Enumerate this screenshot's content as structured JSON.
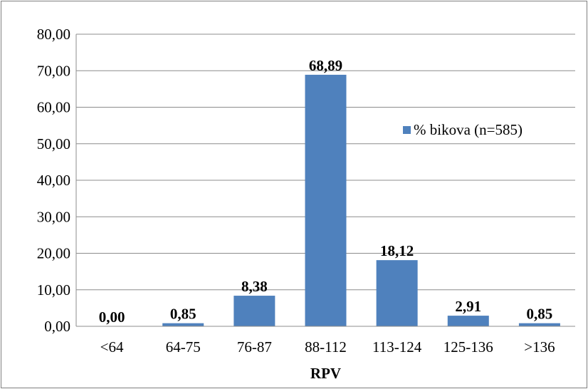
{
  "chart_data": {
    "type": "bar",
    "title": "",
    "xlabel": "RPV",
    "ylabel": "",
    "categories": [
      "<64",
      "64-75",
      "76-87",
      "88-112",
      "113-124",
      "125-136",
      ">136"
    ],
    "series": [
      {
        "name": "% bikova (n=585)",
        "values": [
          0.0,
          0.85,
          8.38,
          68.89,
          18.12,
          2.91,
          0.85
        ],
        "labels": [
          "0,00",
          "0,85",
          "8,38",
          "68,89",
          "18,12",
          "2,91",
          "0,85"
        ],
        "color": "#4f81bd"
      }
    ],
    "ylim": [
      0,
      80
    ],
    "yticks": [
      0,
      10,
      20,
      30,
      40,
      50,
      60,
      70,
      80
    ],
    "ytick_labels": [
      "0,00",
      "10,00",
      "20,00",
      "30,00",
      "40,00",
      "50,00",
      "60,00",
      "70,00",
      "80,00"
    ],
    "grid": true,
    "legend": "right"
  }
}
